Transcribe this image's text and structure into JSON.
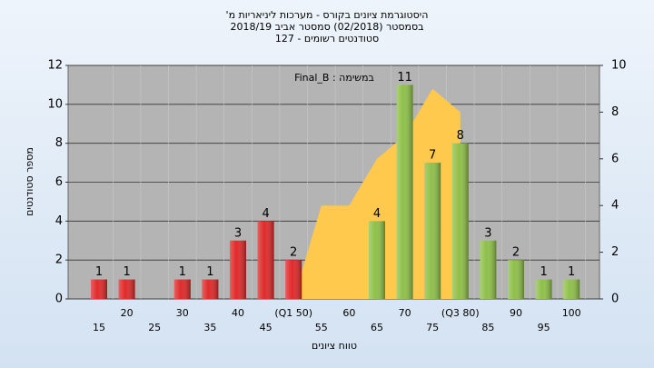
{
  "chart_data": {
    "type": "bar",
    "title": [
      "היסטוגרמת ציונים בקורס - מערכות ליניאריות מ'",
      "בסמסטר (02/2018) סמסטר אביב 2018/19",
      "סטודנטים רשומים - 127"
    ],
    "annotation": "Final_B : במשימה",
    "y_label": "מספר סטודנטים",
    "x_label": "טווח ציונים",
    "categories": [
      "15",
      "20",
      "25",
      "30",
      "35",
      "40",
      "45",
      "(Q1 50)",
      "55",
      "60",
      "65",
      "70",
      "75",
      "(Q3 80)",
      "85",
      "90",
      "95",
      "100"
    ],
    "values": [
      1,
      1,
      0,
      1,
      1,
      3,
      4,
      2,
      0,
      0,
      4,
      11,
      7,
      8,
      3,
      2,
      1,
      1
    ],
    "colors": [
      "#e02a2a",
      "#e02a2a",
      "#e02a2a",
      "#e02a2a",
      "#e02a2a",
      "#e02a2a",
      "#e02a2a",
      "#e02a2a",
      "#8fc04a",
      "#8fc04a",
      "#8fc04a",
      "#8fc04a",
      "#8fc04a",
      "#8fc04a",
      "#8fc04a",
      "#8fc04a",
      "#8fc04a",
      "#8fc04a"
    ],
    "area": {
      "color": "#ffc94d",
      "axis": "y2",
      "values": [
        null,
        null,
        null,
        null,
        null,
        null,
        null,
        0,
        4,
        4,
        6,
        7,
        9,
        8,
        null,
        null,
        null,
        null
      ]
    },
    "ylim": [
      0,
      12
    ],
    "yticks": [
      0,
      2,
      4,
      6,
      8,
      10,
      12
    ],
    "y2lim": [
      0,
      10
    ],
    "y2ticks": [
      0,
      2,
      4,
      6,
      8,
      10
    ],
    "grid": true
  }
}
